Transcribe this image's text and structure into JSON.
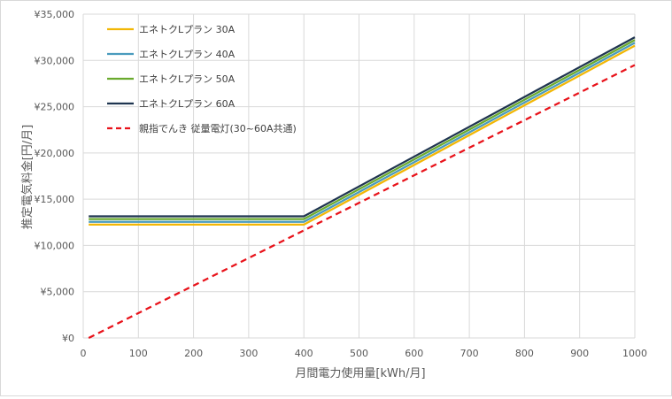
{
  "chart_data": {
    "type": "line",
    "title": "",
    "xlabel": "月間電力使用量[kWh/月]",
    "ylabel": "推定電気料金[円/月]",
    "xlim": [
      0,
      1000
    ],
    "ylim": [
      0,
      35000
    ],
    "x_ticks": [
      "0",
      "100",
      "200",
      "300",
      "400",
      "500",
      "600",
      "700",
      "800",
      "900",
      "1000"
    ],
    "y_ticks": [
      "¥0",
      "¥5,000",
      "¥10,000",
      "¥15,000",
      "¥20,000",
      "¥25,000",
      "¥30,000",
      "¥35,000"
    ],
    "grid": true,
    "legend_position": "top-left",
    "series": [
      {
        "name": "エネトクLプラン 30A",
        "color": "#f2b705",
        "dash": "solid",
        "points": [
          [
            10,
            12250
          ],
          [
            400,
            12250
          ],
          [
            1000,
            31600
          ]
        ]
      },
      {
        "name": "エネトクLプラン 40A",
        "color": "#4a9bbd",
        "dash": "solid",
        "points": [
          [
            10,
            12550
          ],
          [
            400,
            12550
          ],
          [
            1000,
            31900
          ]
        ]
      },
      {
        "name": "エネトクLプラン 50A",
        "color": "#6aaa2e",
        "dash": "solid",
        "points": [
          [
            10,
            12850
          ],
          [
            400,
            12850
          ],
          [
            1000,
            32200
          ]
        ]
      },
      {
        "name": "エネトクLプラン 60A",
        "color": "#1f3550",
        "dash": "solid",
        "points": [
          [
            10,
            13150
          ],
          [
            400,
            13150
          ],
          [
            1000,
            32500
          ]
        ]
      },
      {
        "name": "親指でんき 従量電灯(30~60A共通)",
        "color": "#e8121a",
        "dash": "dashed",
        "points": [
          [
            10,
            0
          ],
          [
            1000,
            29500
          ]
        ]
      }
    ]
  }
}
